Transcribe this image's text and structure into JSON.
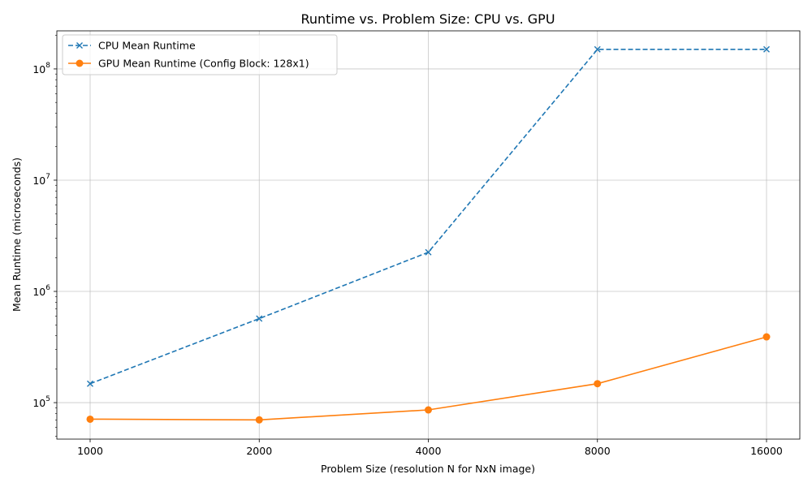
{
  "chart_data": {
    "type": "line",
    "title": "Runtime vs. Problem Size: CPU vs. GPU",
    "xlabel": "Problem Size (resolution N for NxN image)",
    "ylabel": "Mean Runtime (microseconds)",
    "x_scale": "log2",
    "y_scale": "log10",
    "x": [
      1000,
      2000,
      4000,
      8000,
      16000
    ],
    "x_tick_labels": [
      "1000",
      "2000",
      "4000",
      "8000",
      "16000"
    ],
    "y_ticks": [
      {
        "value": 100000,
        "base": "10",
        "exp": "5"
      },
      {
        "value": 1000000,
        "base": "10",
        "exp": "6"
      },
      {
        "value": 10000000,
        "base": "10",
        "exp": "7"
      },
      {
        "value": 100000000,
        "base": "10",
        "exp": "8"
      }
    ],
    "ylim": [
      47000,
      220000000
    ],
    "grid": true,
    "legend_position": "upper-left",
    "series": [
      {
        "name": "CPU Mean Runtime",
        "color": "#1f77b4",
        "line_style": "dashed",
        "marker": "x",
        "values": [
          148000,
          570000,
          2250000,
          150000000,
          150000000
        ]
      },
      {
        "name": "GPU Mean Runtime (Config Block: 128x1)",
        "color": "#ff7f0e",
        "line_style": "solid",
        "marker": "circle",
        "values": [
          71000,
          70000,
          86000,
          148000,
          390000
        ]
      }
    ]
  }
}
